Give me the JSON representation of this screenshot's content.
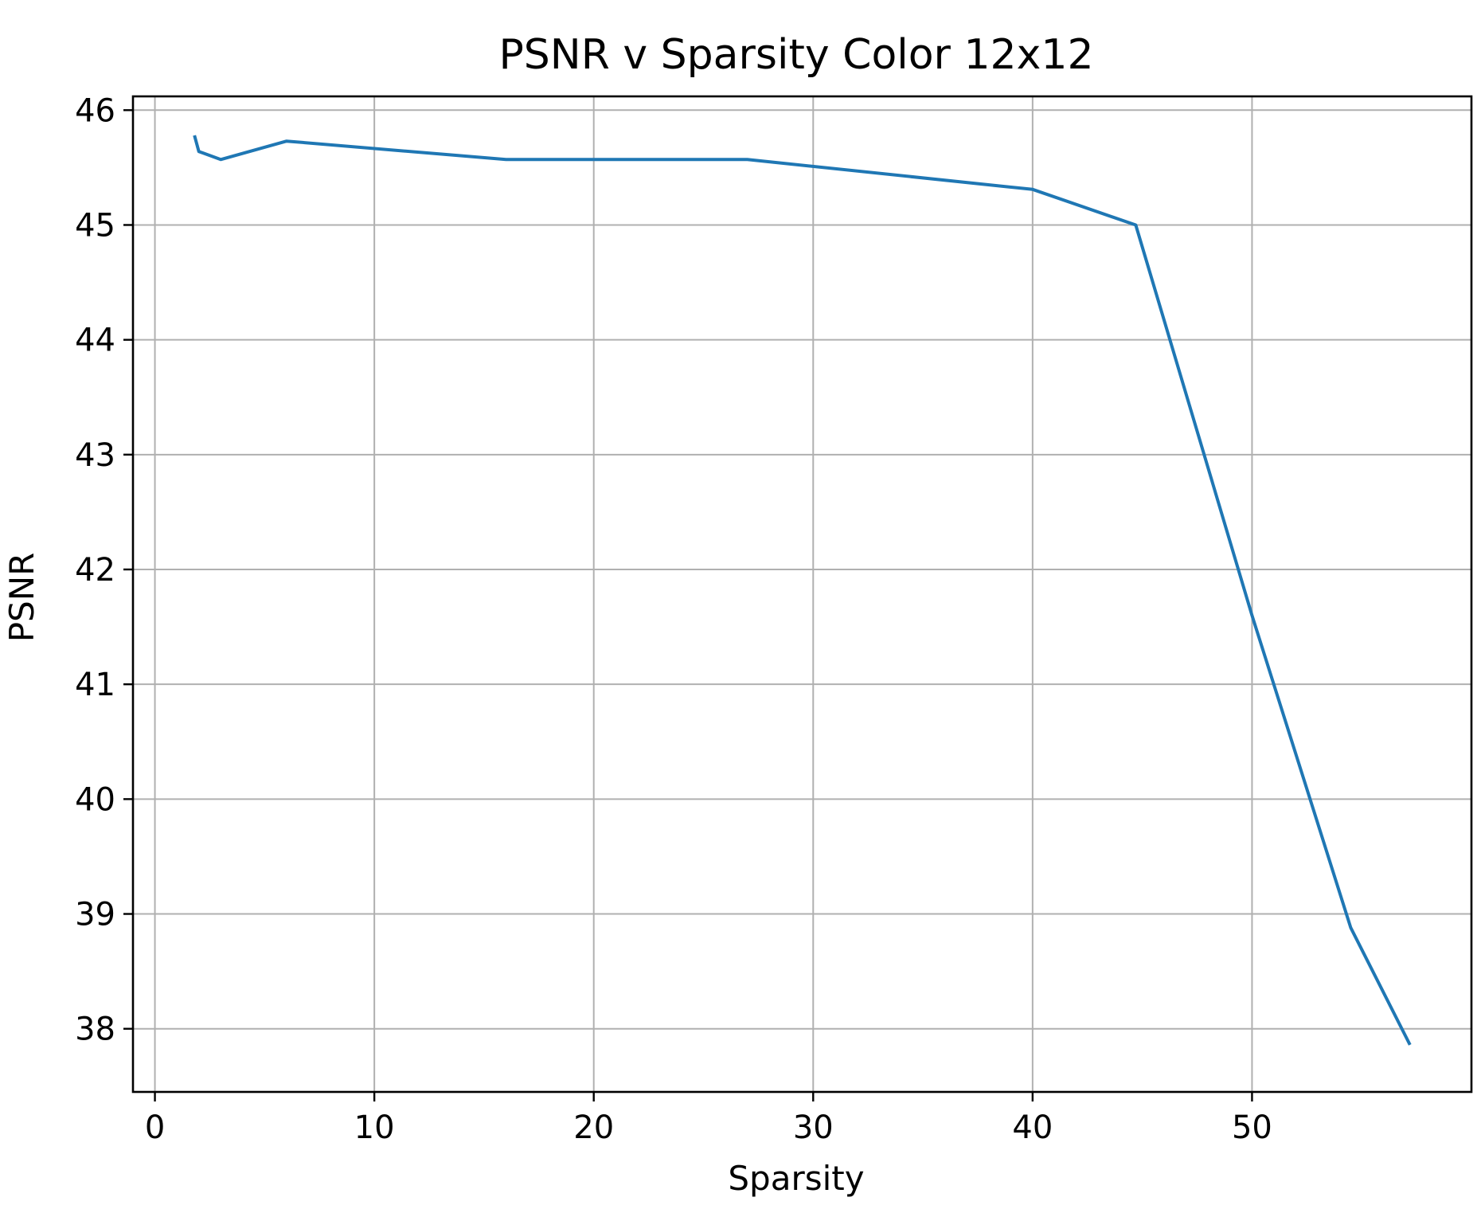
{
  "chart_data": {
    "type": "line",
    "title": "PSNR v Sparsity Color 12x12",
    "xlabel": "Sparsity",
    "ylabel": "PSNR",
    "xlim": [
      -1,
      60
    ],
    "ylim": [
      37.45,
      46.12
    ],
    "xticks": [
      0,
      10,
      20,
      30,
      40,
      50
    ],
    "yticks": [
      38,
      39,
      40,
      41,
      42,
      43,
      44,
      45,
      46
    ],
    "grid": true,
    "colors": {
      "line": "#1f77b4"
    },
    "series": [
      {
        "x": [
          1.8,
          2.0,
          3.0,
          6.0,
          16.0,
          27.0,
          40.0,
          44.7,
          50.0,
          54.5,
          57.2
        ],
        "y": [
          45.78,
          45.64,
          45.57,
          45.73,
          45.57,
          45.57,
          45.31,
          45.0,
          41.6,
          38.88,
          37.86
        ]
      }
    ]
  }
}
